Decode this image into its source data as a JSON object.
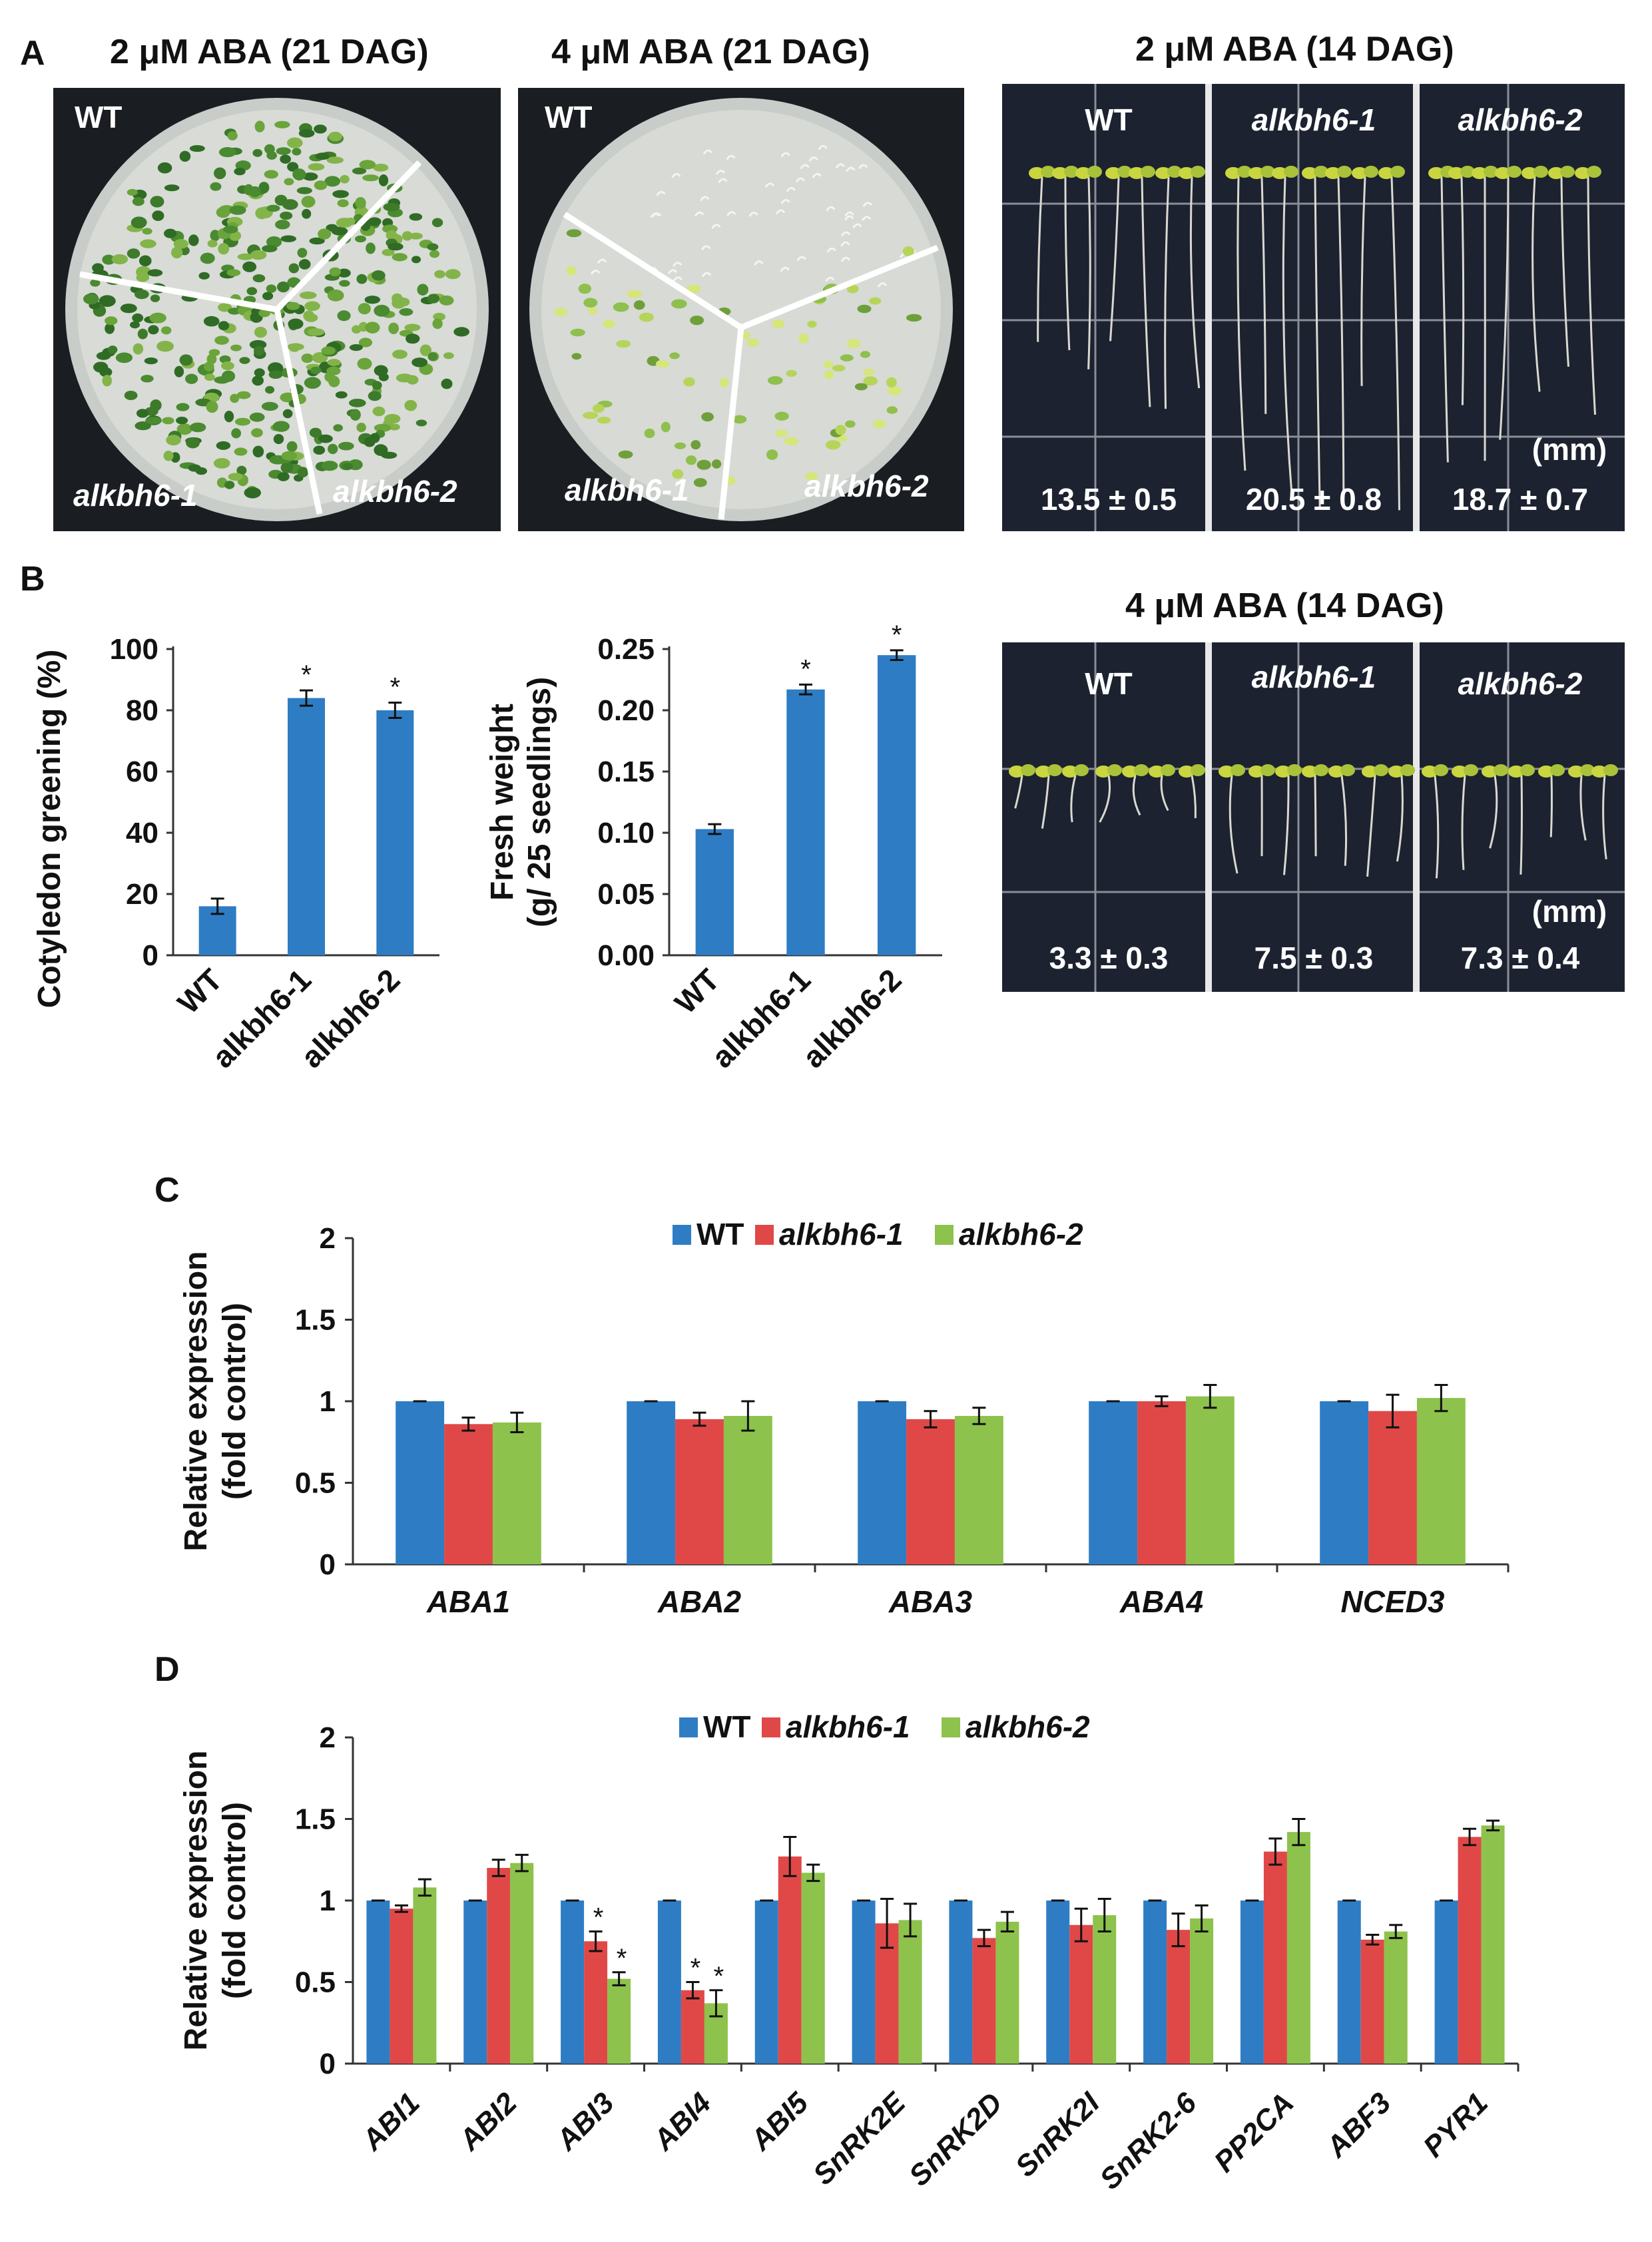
{
  "panel_labels": {
    "A": "A",
    "B": "B",
    "C": "C",
    "D": "D"
  },
  "panel_a": {
    "photo1": {
      "title": "2 μM ABA (21 DAG)",
      "label_wt": "WT",
      "label_m1": "alkbh6-1",
      "label_m2": "alkbh6-2"
    },
    "photo2": {
      "title": "4 μM ABA  (21 DAG)",
      "label_wt": "WT",
      "label_m1": "alkbh6-1",
      "label_m2": "alkbh6-2"
    },
    "photo3": {
      "title": "2 μM ABA (14 DAG)",
      "labels": [
        "WT",
        "alkbh6-1",
        "alkbh6-2"
      ],
      "unit": "(mm)",
      "values": [
        "13.5 ± 0.5",
        "20.5 ± 0.8",
        "18.7 ± 0.7"
      ]
    }
  },
  "panel_b": {
    "photo": {
      "title": "4 μM ABA (14 DAG)",
      "labels": [
        "WT",
        "alkbh6-1",
        "alkbh6-2"
      ],
      "unit": "(mm)",
      "values": [
        "3.3 ± 0.3",
        "7.5 ± 0.3",
        "7.3 ± 0.4"
      ]
    }
  },
  "colors": {
    "wt": "#2e7dc4",
    "m1": "#e04848",
    "m2": "#8dc24c",
    "axis": "#333333",
    "plate_bg": "#1c2230",
    "agar": "#cfd3cf"
  },
  "chart_data": [
    {
      "id": "greening",
      "type": "bar",
      "title": "",
      "ylabel": "Cotyledon greening (%)",
      "xlabel": "",
      "categories": [
        "WT",
        "alkbh6-1",
        "alkbh6-2"
      ],
      "values": [
        16,
        84,
        80
      ],
      "errors": [
        2.5,
        2.5,
        2.5
      ],
      "significance": [
        "",
        "*",
        "*"
      ],
      "ylim": [
        0,
        100
      ],
      "yticks": [
        "0",
        "20",
        "40",
        "60",
        "80",
        "100"
      ]
    },
    {
      "id": "fresh_weight",
      "type": "bar",
      "title": "",
      "ylabel": "Fresh weight",
      "ylabel2": "(g/ 25 seedlings)",
      "xlabel": "",
      "categories": [
        "WT",
        "alkbh6-1",
        "alkbh6-2"
      ],
      "values": [
        0.103,
        0.217,
        0.245
      ],
      "errors": [
        0.004,
        0.004,
        0.004
      ],
      "significance": [
        "",
        "*",
        "*"
      ],
      "ylim": [
        0,
        0.25
      ],
      "yticks": [
        "0.00",
        "0.05",
        "0.10",
        "0.15",
        "0.20",
        "0.25"
      ]
    },
    {
      "id": "panel_c",
      "type": "bar",
      "title": "",
      "ylabel": "Relative expression",
      "ylabel2": "(fold control)",
      "categories": [
        "ABA1",
        "ABA2",
        "ABA3",
        "ABA4",
        "NCED3"
      ],
      "series": [
        {
          "name": "WT",
          "values": [
            1,
            1,
            1,
            1,
            1
          ],
          "errors": [
            0,
            0,
            0,
            0,
            0
          ],
          "significance": [
            "",
            "",
            "",
            "",
            ""
          ]
        },
        {
          "name": "alkbh6-1",
          "values": [
            0.86,
            0.89,
            0.89,
            1.0,
            0.94
          ],
          "errors": [
            0.04,
            0.04,
            0.05,
            0.03,
            0.1
          ],
          "significance": [
            "",
            "",
            "",
            "",
            ""
          ]
        },
        {
          "name": "alkbh6-2",
          "values": [
            0.87,
            0.91,
            0.91,
            1.03,
            1.02
          ],
          "errors": [
            0.06,
            0.09,
            0.05,
            0.07,
            0.08
          ],
          "significance": [
            "",
            "",
            "",
            "",
            ""
          ]
        }
      ],
      "ylim": [
        0,
        2
      ],
      "yticks": [
        "0",
        "0.5",
        "1",
        "1.5",
        "2"
      ],
      "legend": "top-center"
    },
    {
      "id": "panel_d",
      "type": "bar",
      "title": "",
      "ylabel": "Relative expression",
      "ylabel2": "(fold control)",
      "categories": [
        "ABI1",
        "ABI2",
        "ABI3",
        "ABI4",
        "ABI5",
        "SnRK2E",
        "SnRK2D",
        "SnRK2I",
        "SnRK2-6",
        "PP2CA",
        "ABF3",
        "PYR1"
      ],
      "series": [
        {
          "name": "WT",
          "values": [
            1,
            1,
            1,
            1,
            1,
            1,
            1,
            1,
            1,
            1,
            1,
            1
          ],
          "errors": [
            0,
            0,
            0,
            0,
            0,
            0,
            0,
            0,
            0,
            0,
            0,
            0
          ],
          "significance": [
            "",
            "",
            "",
            "",
            "",
            "",
            "",
            "",
            "",
            "",
            "",
            ""
          ]
        },
        {
          "name": "alkbh6-1",
          "values": [
            0.95,
            1.2,
            0.75,
            0.45,
            1.27,
            0.86,
            0.77,
            0.85,
            0.82,
            1.3,
            0.76,
            1.39
          ],
          "errors": [
            0.02,
            0.05,
            0.06,
            0.05,
            0.12,
            0.15,
            0.05,
            0.1,
            0.1,
            0.08,
            0.03,
            0.05
          ],
          "significance": [
            "",
            "",
            "*",
            "*",
            "",
            "",
            "",
            "",
            "",
            "",
            "",
            ""
          ]
        },
        {
          "name": "alkbh6-2",
          "values": [
            1.08,
            1.23,
            0.52,
            0.37,
            1.17,
            0.88,
            0.87,
            0.91,
            0.89,
            1.42,
            0.81,
            1.46
          ],
          "errors": [
            0.05,
            0.05,
            0.04,
            0.08,
            0.05,
            0.1,
            0.06,
            0.1,
            0.08,
            0.08,
            0.04,
            0.03
          ],
          "significance": [
            "",
            "",
            "*",
            "*",
            "",
            "",
            "",
            "",
            "",
            "",
            "",
            ""
          ]
        }
      ],
      "ylim": [
        0,
        2
      ],
      "yticks": [
        "0",
        "0.5",
        "1",
        "1.5",
        "2"
      ],
      "legend": "top-center"
    }
  ]
}
